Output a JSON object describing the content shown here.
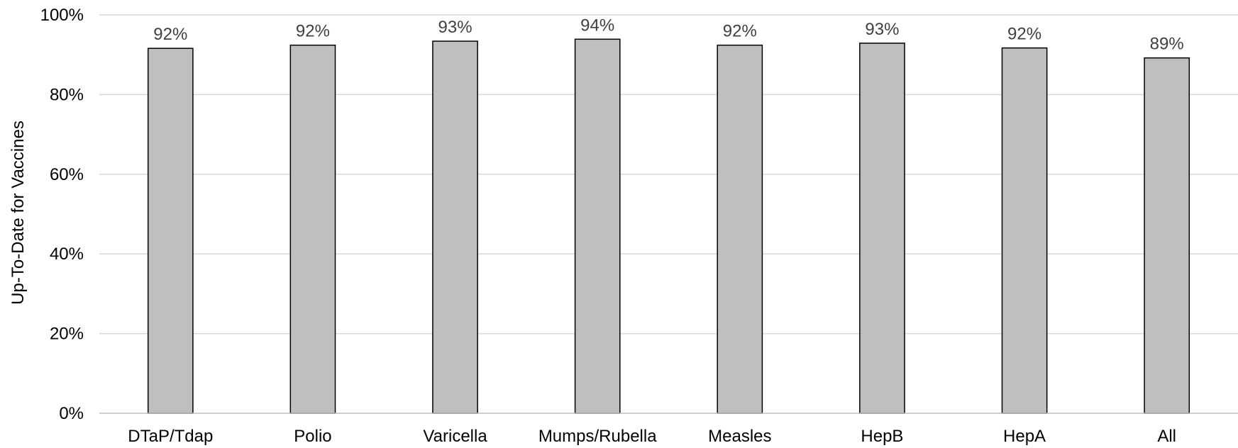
{
  "chart_data": {
    "type": "bar",
    "title": "",
    "xlabel": "",
    "ylabel": "Up-To-Date for Vaccines",
    "categories": [
      "DTaP/Tdap",
      "Polio",
      "Varicella",
      "Mumps/Rubella",
      "Measles",
      "HepB",
      "HepA",
      "All"
    ],
    "values": [
      91.6,
      92.4,
      93.4,
      93.9,
      92.4,
      92.9,
      91.7,
      89.2
    ],
    "data_labels": [
      "92%",
      "92%",
      "93%",
      "94%",
      "92%",
      "93%",
      "92%",
      "89%"
    ],
    "yticks": [
      0,
      20,
      40,
      60,
      80,
      100
    ],
    "ytick_labels": [
      "0%",
      "20%",
      "40%",
      "60%",
      "80%",
      "100%"
    ],
    "ylim": [
      0,
      100
    ],
    "grid": true,
    "legend": "none",
    "colors": {
      "bar_fill": "#bfbfbf",
      "bar_stroke": "#000000",
      "grid": "#d9d9d9",
      "axis": "#bfbfbf",
      "data_label": "#404040"
    }
  }
}
